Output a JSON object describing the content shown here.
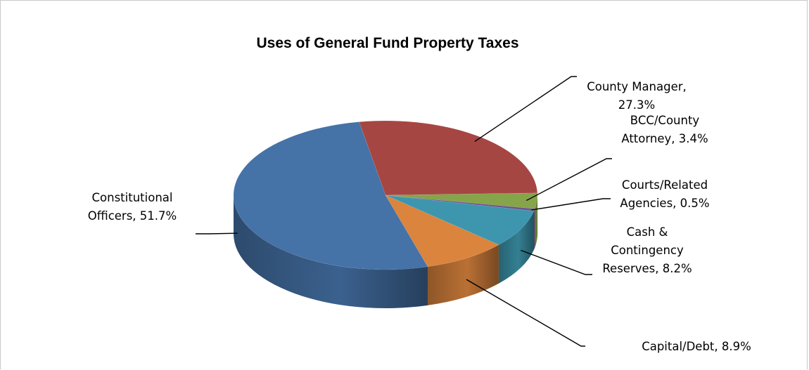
{
  "chart_data": {
    "type": "pie",
    "title": "Uses of General Fund Property Taxes",
    "slices": [
      {
        "name": "County Manager",
        "value": 27.3,
        "color": "#a64643",
        "label_lines": [
          "County Manager,",
          "27.3%"
        ]
      },
      {
        "name": "BCC/County Attorney",
        "value": 3.4,
        "color": "#86a44a",
        "label_lines": [
          "BCC/County",
          "Attorney, 3.4%"
        ]
      },
      {
        "name": "Courts/Related Agencies",
        "value": 0.5,
        "color": "#6e548d",
        "label_lines": [
          "Courts/Related",
          "Agencies, 0.5%"
        ]
      },
      {
        "name": "Cash & Contingency Reserves",
        "value": 8.2,
        "color": "#3d96ae",
        "label_lines": [
          "Cash &",
          "Contingency",
          "Reserves, 8.2%"
        ]
      },
      {
        "name": "Capital/Debt",
        "value": 8.9,
        "color": "#db843d",
        "label_lines": [
          "Capital/Debt, 8.9%"
        ]
      },
      {
        "name": "Constitutional Officers",
        "value": 51.7,
        "color": "#4572a7",
        "label_lines": [
          "Constitutional",
          "Officers, 51.7%"
        ]
      }
    ],
    "legend": "none",
    "style": "3d-pie"
  }
}
